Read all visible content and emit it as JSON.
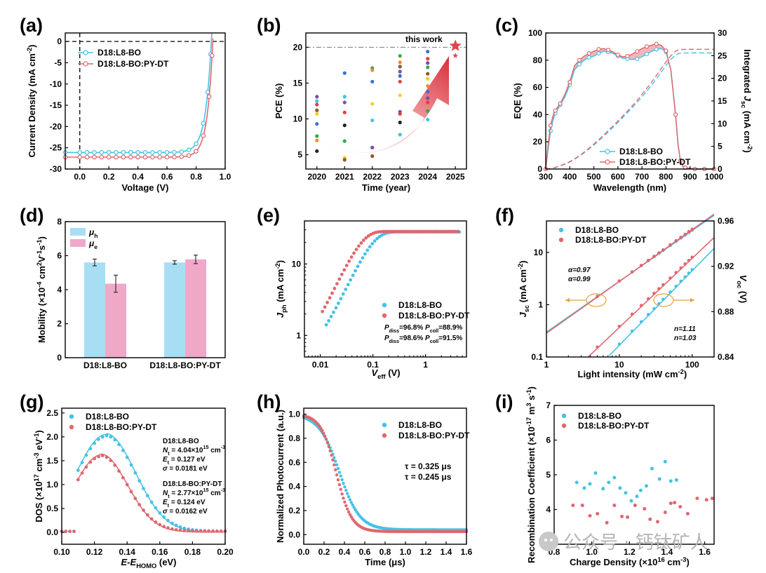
{
  "colors": {
    "blue": "#44c2e6",
    "red": "#e0676f",
    "pink": "#f0a8c8",
    "lightblue": "#a8def3"
  },
  "watermark": "公众号 · 钙钛矿人",
  "chart_data": [
    {
      "id": "a",
      "panel_label": "(a)",
      "type": "line",
      "xlabel": "Voltage (V)",
      "ylabel": "Current Density (mA cm-2)",
      "xlim": [
        -0.1,
        1.0
      ],
      "ylim": [
        -30,
        2
      ],
      "xticks": [
        0.0,
        0.2,
        0.4,
        0.6,
        0.8,
        1.0
      ],
      "yticks": [
        0,
        -5,
        -10,
        -15,
        -20,
        -25,
        -30
      ],
      "legend": "top-left",
      "series": [
        {
          "name": "D18:L8-BO",
          "color": "#44c2e6",
          "jsc": -26.1,
          "voc": 0.905,
          "n": 1.6,
          "markers_x": [
            -0.1,
            0.0,
            0.05,
            0.1,
            0.15,
            0.2,
            0.25,
            0.3,
            0.35,
            0.4,
            0.45,
            0.5,
            0.55,
            0.6,
            0.65,
            0.7,
            0.75,
            0.8,
            0.85,
            0.88,
            0.9
          ]
        },
        {
          "name": "D18:L8-BO:PY-DT",
          "color": "#e0676f",
          "jsc": -27.2,
          "voc": 0.915,
          "n": 1.5,
          "markers_x": [
            -0.1,
            0.0,
            0.05,
            0.1,
            0.15,
            0.2,
            0.25,
            0.3,
            0.35,
            0.4,
            0.45,
            0.5,
            0.55,
            0.6,
            0.65,
            0.7,
            0.75,
            0.8,
            0.85,
            0.89,
            0.91
          ]
        }
      ]
    },
    {
      "id": "b",
      "panel_label": "(b)",
      "type": "scatter",
      "xlabel": "Time (year)",
      "ylabel": "PCE (%)",
      "xlim": [
        2019.6,
        2025.4
      ],
      "ylim": [
        3,
        22
      ],
      "xticks": [
        2020,
        2021,
        2022,
        2023,
        2024,
        2025
      ],
      "yticks": [
        5,
        10,
        15,
        20
      ],
      "reference_line_y": 20,
      "annotation": "this work",
      "points": [
        {
          "x": 2020,
          "y": 13.1,
          "c": "#7b4fa3"
        },
        {
          "x": 2020,
          "y": 12.5,
          "c": "#44c2e6"
        },
        {
          "x": 2020,
          "y": 12.0,
          "c": "#e04040"
        },
        {
          "x": 2020,
          "y": 11.2,
          "c": "#8c5a2a"
        },
        {
          "x": 2020,
          "y": 10.7,
          "c": "#f2d12e"
        },
        {
          "x": 2020,
          "y": 9.3,
          "c": "#3a6fd8"
        },
        {
          "x": 2020,
          "y": 7.6,
          "c": "#3ca34f"
        },
        {
          "x": 2020,
          "y": 7.0,
          "c": "#f08c2e"
        },
        {
          "x": 2020,
          "y": 5.5,
          "c": "#222222"
        },
        {
          "x": 2021,
          "y": 16.4,
          "c": "#3a6fd8"
        },
        {
          "x": 2021,
          "y": 13.1,
          "c": "#44c2e6"
        },
        {
          "x": 2021,
          "y": 12.3,
          "c": "#7b4fa3"
        },
        {
          "x": 2021,
          "y": 10.9,
          "c": "#e04040"
        },
        {
          "x": 2021,
          "y": 9.1,
          "c": "#222222"
        },
        {
          "x": 2021,
          "y": 6.9,
          "c": "#3ca34f"
        },
        {
          "x": 2021,
          "y": 4.6,
          "c": "#f2d12e"
        },
        {
          "x": 2021,
          "y": 4.3,
          "c": "#8c5a2a"
        },
        {
          "x": 2022,
          "y": 17.1,
          "c": "#3ca34f"
        },
        {
          "x": 2022,
          "y": 16.8,
          "c": "#f08c2e"
        },
        {
          "x": 2022,
          "y": 15.2,
          "c": "#3a6fd8"
        },
        {
          "x": 2022,
          "y": 12.1,
          "c": "#f2d12e"
        },
        {
          "x": 2022,
          "y": 9.8,
          "c": "#44c2e6"
        },
        {
          "x": 2022,
          "y": 6.0,
          "c": "#7b4fa3"
        },
        {
          "x": 2022,
          "y": 4.8,
          "c": "#8c5a2a"
        },
        {
          "x": 2023,
          "y": 18.8,
          "c": "#3ca34f"
        },
        {
          "x": 2023,
          "y": 17.9,
          "c": "#f08c2e"
        },
        {
          "x": 2023,
          "y": 17.3,
          "c": "#8c5a2a"
        },
        {
          "x": 2023,
          "y": 16.6,
          "c": "#7b4fa3"
        },
        {
          "x": 2023,
          "y": 16.0,
          "c": "#3a6fd8"
        },
        {
          "x": 2023,
          "y": 15.2,
          "c": "#e04040"
        },
        {
          "x": 2023,
          "y": 13.3,
          "c": "#f2d12e"
        },
        {
          "x": 2023,
          "y": 11.0,
          "c": "#7b4fa3"
        },
        {
          "x": 2023,
          "y": 10.7,
          "c": "#e04040"
        },
        {
          "x": 2023,
          "y": 9.5,
          "c": "#222222"
        },
        {
          "x": 2023,
          "y": 7.8,
          "c": "#44c2e6"
        },
        {
          "x": 2024,
          "y": 19.4,
          "c": "#3a6fd8"
        },
        {
          "x": 2024,
          "y": 18.4,
          "c": "#e04040"
        },
        {
          "x": 2024,
          "y": 17.8,
          "c": "#7b4fa3"
        },
        {
          "x": 2024,
          "y": 17.2,
          "c": "#3ca34f"
        },
        {
          "x": 2024,
          "y": 16.3,
          "c": "#8c5a2a"
        },
        {
          "x": 2024,
          "y": 15.6,
          "c": "#f2d12e"
        },
        {
          "x": 2024,
          "y": 14.6,
          "c": "#f08c2e"
        },
        {
          "x": 2024,
          "y": 13.8,
          "c": "#3a6fd8"
        },
        {
          "x": 2024,
          "y": 12.9,
          "c": "#7b4fa3"
        },
        {
          "x": 2024,
          "y": 12.3,
          "c": "#e04040"
        },
        {
          "x": 2024,
          "y": 11.1,
          "c": "#3ca34f"
        },
        {
          "x": 2024,
          "y": 9.9,
          "c": "#44c2e6"
        }
      ],
      "highlight": {
        "x": 2025,
        "y": 20.2,
        "c": "#e0454f"
      }
    },
    {
      "id": "c",
      "panel_label": "(c)",
      "type": "line",
      "xlabel": "Wavelength (nm)",
      "ylabel": "EQE (%)",
      "y2label": "Integrated Jsc (mA cm-2)",
      "xlim": [
        300,
        1000
      ],
      "ylim": [
        0,
        100
      ],
      "y2lim": [
        0,
        30
      ],
      "xticks": [
        300,
        400,
        500,
        600,
        700,
        800,
        900,
        1000
      ],
      "yticks": [
        0,
        20,
        40,
        60,
        80,
        100
      ],
      "y2ticks": [
        0,
        5,
        10,
        15,
        20,
        25,
        30
      ],
      "legend": "bottom-right",
      "wavelength": [
        300,
        310,
        320,
        330,
        340,
        350,
        360,
        380,
        400,
        420,
        440,
        460,
        480,
        500,
        520,
        540,
        560,
        580,
        600,
        620,
        640,
        660,
        680,
        700,
        720,
        740,
        760,
        780,
        800,
        820,
        840,
        850,
        860,
        870,
        880,
        900,
        920,
        940,
        960,
        980,
        1000
      ],
      "series": [
        {
          "name": "D18:L8-BO",
          "color": "#44c2e6",
          "eqe": [
            0,
            15,
            28,
            36,
            41,
            44,
            47,
            53,
            62,
            73,
            77,
            80,
            82,
            83,
            85,
            86.5,
            86,
            85,
            83,
            81.5,
            81,
            80.5,
            81,
            82.5,
            84.5,
            86.5,
            88,
            88.5,
            86,
            73,
            40,
            18,
            6,
            2,
            1,
            0.5,
            0,
            0,
            0,
            0,
            0
          ],
          "jsc_final": 25.6
        },
        {
          "name": "D18:L8-BO:PY-DT",
          "color": "#e0676f",
          "eqe": [
            0,
            18,
            32,
            39,
            43,
            45.5,
            48,
            55,
            64,
            76,
            80,
            83,
            85,
            86.5,
            88,
            88.5,
            87.5,
            86,
            84,
            82.5,
            83,
            84.5,
            86.5,
            88.5,
            90,
            91,
            92,
            91,
            87,
            73,
            40,
            18,
            6,
            2,
            1,
            0.5,
            0,
            0,
            0,
            0,
            0
          ],
          "jsc_final": 26.4
        }
      ]
    },
    {
      "id": "d",
      "panel_label": "(d)",
      "type": "bar",
      "xlabel": "",
      "ylabel": "Mobility (×10-4 cm2V-1s-1)",
      "categories": [
        "D18:L8-BO",
        "D18:L8-BO:PY-DT"
      ],
      "ylim": [
        0,
        8
      ],
      "yticks": [
        0,
        2,
        4,
        6,
        8
      ],
      "legend": "top-left",
      "series": [
        {
          "name": "μh",
          "color": "#a8def3",
          "values": [
            5.6,
            5.6
          ],
          "errors": [
            0.2,
            0.1
          ]
        },
        {
          "name": "μe",
          "color": "#f0a8c8",
          "values": [
            4.35,
            5.78
          ],
          "errors": [
            0.5,
            0.25
          ]
        }
      ]
    },
    {
      "id": "e",
      "panel_label": "(e)",
      "type": "scatter",
      "xlabel": "Veff (V)",
      "ylabel": "Jph (mA cm-2)",
      "xscale": "log",
      "yscale": "log",
      "xlim": [
        0.005,
        6
      ],
      "ylim": [
        0.5,
        40
      ],
      "xticks": [
        0.01,
        0.1,
        1
      ],
      "yticks": [
        1,
        10
      ],
      "legend": "right",
      "series": [
        {
          "name": "D18:L8-BO",
          "color": "#44c2e6",
          "jsat": 27.6,
          "v0": 0.09,
          "vmin": 0.013,
          "annotation": "Pdiss=96.8% Pcoll=88.9%"
        },
        {
          "name": "D18:L8-BO:PY-DT",
          "color": "#e0676f",
          "jsat": 28.1,
          "v0": 0.055,
          "vmin": 0.011,
          "annotation": "Pdiss=98.6% Pcoll=91.5%"
        }
      ]
    },
    {
      "id": "f",
      "panel_label": "(f)",
      "type": "scatter",
      "xlabel": "Light intensity (mW cm-2)",
      "ylabel": "Jsc (mA cm-2)",
      "y2label": "Voc (V)",
      "xscale": "log",
      "yscale": "log",
      "xlim": [
        1,
        200
      ],
      "ylim": [
        0.1,
        40
      ],
      "y2lim": [
        0.84,
        0.96
      ],
      "xticks": [
        1,
        10,
        100
      ],
      "yticks": [
        0.1,
        1,
        10
      ],
      "y2ticks": [
        0.84,
        0.88,
        0.92,
        0.96
      ],
      "legend": "top-left",
      "series": [
        {
          "name": "D18:L8-BO",
          "color": "#44c2e6",
          "alpha": 0.97,
          "n": 1.11,
          "jsc_at_1sun": 26.1,
          "voc_at_1sun": 0.916
        },
        {
          "name": "D18:L8-BO:PY-DT",
          "color": "#e0676f",
          "alpha": 0.99,
          "n": 1.03,
          "jsc_at_1sun": 27.2,
          "voc_at_1sun": 0.927
        }
      ],
      "alpha_labels": [
        "α=0.97",
        "α=0.99"
      ],
      "n_labels": [
        "n=1.11",
        "n=1.03"
      ]
    },
    {
      "id": "g",
      "panel_label": "(g)",
      "type": "scatter",
      "xlabel": "E-EHOMO (eV)",
      "ylabel": "DOS (×1017 cm-3 eV-1)",
      "xlim": [
        0.1,
        0.2
      ],
      "ylim": [
        -0.25,
        2.6
      ],
      "xticks": [
        0.1,
        0.12,
        0.14,
        0.16,
        0.18,
        0.2
      ],
      "yticks": [
        0.0,
        0.5,
        1.0,
        1.5,
        2.0,
        2.5
      ],
      "legend": "top-left",
      "series": [
        {
          "name": "D18:L8-BO",
          "color": "#44c2e6",
          "peak": 2.05,
          "e_t": 0.127,
          "sigma": 0.0181,
          "params": [
            "D18:L8-BO",
            "Nt = 4.04×1015 cm-3",
            "Et = 0.127 eV",
            "σ = 0.0181 eV"
          ]
        },
        {
          "name": "D18:L8-BO:PY-DT",
          "color": "#e0676f",
          "peak": 1.62,
          "e_t": 0.124,
          "sigma": 0.0162,
          "params": [
            "D18:L8-BO:PY-DT",
            "Nt = 2.77×1015 cm-3",
            "Et = 0.124 eV",
            "σ = 0.0162 eV"
          ]
        }
      ]
    },
    {
      "id": "h",
      "panel_label": "(h)",
      "type": "scatter",
      "xlabel": "Time (μs)",
      "ylabel": "Normalized Photocurrent (a.u.)",
      "xlim": [
        0,
        1.6
      ],
      "ylim": [
        -0.08,
        1.05
      ],
      "xticks": [
        0.0,
        0.2,
        0.4,
        0.6,
        0.8,
        1.0,
        1.2,
        1.4,
        1.6
      ],
      "yticks": [
        0.0,
        0.2,
        0.4,
        0.6,
        0.8,
        1.0
      ],
      "legend": "top-right",
      "series": [
        {
          "name": "D18:L8-BO",
          "color": "#44c2e6",
          "tau": 0.325,
          "t50": 0.35,
          "tail": 0.04,
          "label": "τ = 0.325 μs"
        },
        {
          "name": "D18:L8-BO:PY-DT",
          "color": "#e0676f",
          "tau": 0.245,
          "t50": 0.32,
          "tail": 0.025,
          "label": "τ = 0.245 μs"
        }
      ]
    },
    {
      "id": "i",
      "panel_label": "(i)",
      "type": "scatter",
      "xlabel": "Charge Density (×1016 cm-3)",
      "ylabel": "Recombination Coefficient (×10-17 m3 s-1)",
      "xlim": [
        0.8,
        1.65
      ],
      "ylim": [
        3,
        7
      ],
      "xticks": [
        0.8,
        1.0,
        1.2,
        1.4,
        1.6
      ],
      "yticks": [
        3,
        4,
        5,
        6,
        7
      ],
      "legend": "top-left",
      "series": [
        {
          "name": "D18:L8-BO",
          "color": "#44c2e6",
          "points": [
            [
              0.92,
              4.78
            ],
            [
              0.96,
              4.62
            ],
            [
              0.99,
              4.74
            ],
            [
              1.02,
              5.05
            ],
            [
              1.06,
              4.6
            ],
            [
              1.09,
              4.78
            ],
            [
              1.12,
              4.92
            ],
            [
              1.15,
              4.62
            ],
            [
              1.18,
              4.48
            ],
            [
              1.21,
              4.25
            ],
            [
              1.24,
              4.38
            ],
            [
              1.26,
              4.55
            ],
            [
              1.29,
              4.68
            ],
            [
              1.32,
              5.18
            ],
            [
              1.36,
              4.88
            ],
            [
              1.39,
              5.38
            ],
            [
              1.42,
              4.82
            ],
            [
              1.45,
              4.85
            ]
          ]
        },
        {
          "name": "D18:L8-BO:PY-DT",
          "color": "#e0676f",
          "points": [
            [
              0.9,
              4.12
            ],
            [
              0.95,
              4.12
            ],
            [
              0.99,
              3.82
            ],
            [
              1.03,
              3.88
            ],
            [
              1.08,
              3.62
            ],
            [
              1.12,
              4.12
            ],
            [
              1.16,
              3.8
            ],
            [
              1.19,
              3.78
            ],
            [
              1.23,
              4.12
            ],
            [
              1.28,
              4.02
            ],
            [
              1.31,
              3.72
            ],
            [
              1.35,
              3.65
            ],
            [
              1.39,
              3.92
            ],
            [
              1.42,
              4.18
            ],
            [
              1.47,
              4.08
            ],
            [
              1.51,
              3.88
            ],
            [
              1.56,
              4.32
            ],
            [
              1.61,
              4.28
            ],
            [
              1.64,
              4.32
            ],
            [
              1.44,
              4.2
            ]
          ]
        }
      ]
    }
  ]
}
